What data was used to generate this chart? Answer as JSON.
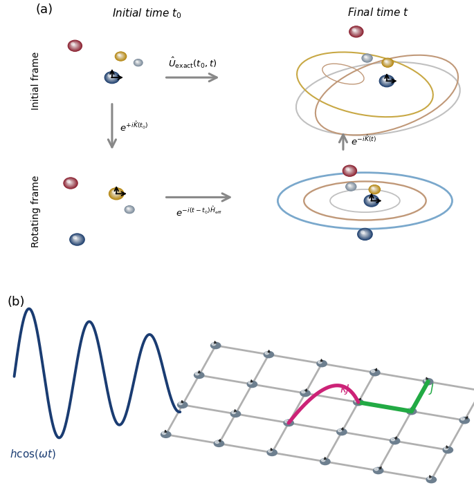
{
  "bg_color": "#ffffff",
  "panel_a_label": "(a)",
  "panel_b_label": "(b)",
  "title_initial": "Initial time $t_0$",
  "title_final": "Final time $t$",
  "label_initial_frame": "Initial frame",
  "label_rotating_frame": "Rotating frame",
  "arrow_exact": "$\\hat{U}_{\\mathrm{exact}}(t_0,t)$",
  "arrow_kick_left": "$e^{+i\\hat{K}(t_0)}$",
  "arrow_kick_right": "$e^{-i\\hat{K}(t)}$",
  "arrow_heff": "$e^{-i(t-t_0)\\hat{H}_{\\mathrm{eff}}}$",
  "hcos_label": "$h\\cos(\\omega t)$",
  "J_label": "$J$",
  "kappaJ_label": "$\\kappa J$",
  "colors": {
    "dark_blue": "#1e3f6e",
    "crimson": "#8b2030",
    "gold": "#b5860f",
    "gray_sphere": "#7a8a9a",
    "arrow_gray": "#888888",
    "orbit_gold": "#c8a844",
    "orbit_gray": "#c0c0c0",
    "orbit_brown": "#c09878",
    "orbit_blue": "#7aA8cc",
    "orbit_brown2": "#c09878",
    "wave_blue": "#1a3c72",
    "grid_gray": "#b0b0b0",
    "magenta": "#cc2277",
    "green": "#22aa44",
    "text_blue": "#1a3c72"
  }
}
